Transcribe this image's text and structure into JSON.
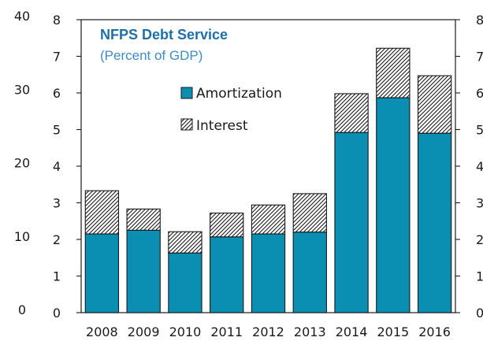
{
  "chart_data": {
    "type": "bar",
    "stacked": true,
    "title": "NFPS Debt Service",
    "subtitle": "(Percent of GDP)",
    "categories": [
      "2008",
      "2009",
      "2010",
      "2011",
      "2012",
      "2013",
      "2014",
      "2015",
      "2016"
    ],
    "series": [
      {
        "name": "Amortization",
        "color": "#0a8fb3",
        "values": [
          2.15,
          2.25,
          1.63,
          2.07,
          2.15,
          2.2,
          4.92,
          5.87,
          4.9
        ]
      },
      {
        "name": "Interest",
        "pattern": "diagonal-hatch",
        "values": [
          1.18,
          0.58,
          0.58,
          0.65,
          0.79,
          1.05,
          1.06,
          1.35,
          1.57
        ]
      }
    ],
    "ylim": [
      0,
      8
    ],
    "yticks": [
      "0",
      "1",
      "2",
      "3",
      "4",
      "5",
      "6",
      "7",
      "8"
    ],
    "y2ticks": [
      "0",
      "1",
      "2",
      "3",
      "4",
      "5",
      "6",
      "7",
      "8"
    ],
    "outer_left_ticks": [
      "0",
      "10",
      "20",
      "30",
      "40"
    ],
    "legend_position": "upper-center",
    "grid": false
  }
}
